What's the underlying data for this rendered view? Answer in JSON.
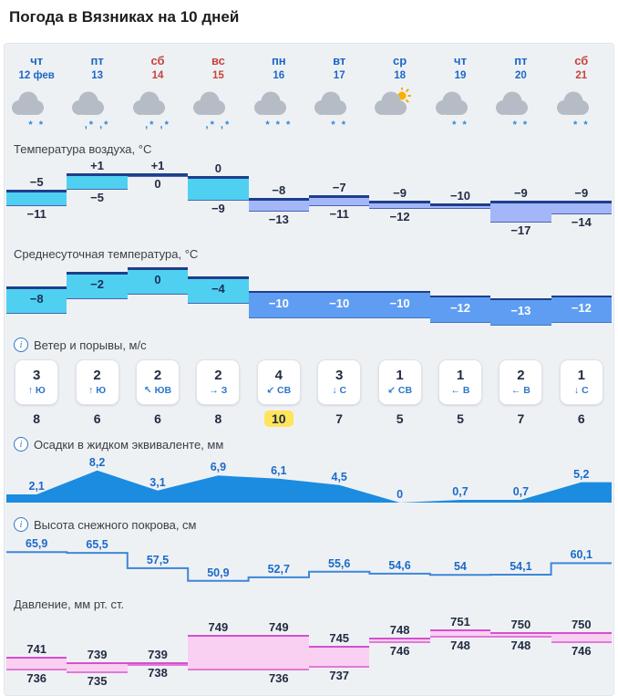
{
  "page": {
    "title": "Погода в Вязниках на 10 дней"
  },
  "sections": {
    "air_temp": "Температура воздуха, °C",
    "avg_temp": "Среднесуточная температура, °C",
    "wind": "Ветер и порывы, м/с",
    "precip": "Осадки в жидком эквиваленте, мм",
    "snow": "Высота снежного покрова, см",
    "pressure": "Давление, мм рт. ст."
  },
  "colors": {
    "warm": "#50d0f0",
    "cold_light": "#a3b6f8",
    "cold_medium": "#5e9df2",
    "edge_navy": "#1d3f8c",
    "precip": "#1b8ce0",
    "snow_line": "#3f86d6",
    "pressure_fill": "#f9d0f1",
    "pressure_edge": "#d64fd0",
    "day_blue": "#1c67c8",
    "day_red": "#c8443c",
    "gust_highlight": "#ffe45c"
  },
  "days": [
    {
      "dow": "чт",
      "date": "12 фев",
      "weekend": false,
      "icon": "cloud-snow",
      "flakes": "* *"
    },
    {
      "dow": "пт",
      "date": "13",
      "weekend": false,
      "icon": "cloud-sleet",
      "flakes": ",* ,*"
    },
    {
      "dow": "сб",
      "date": "14",
      "weekend": true,
      "icon": "cloud-sleet",
      "flakes": ",* ,*"
    },
    {
      "dow": "вс",
      "date": "15",
      "weekend": true,
      "icon": "cloud-sleet",
      "flakes": ",* ,*"
    },
    {
      "dow": "пн",
      "date": "16",
      "weekend": false,
      "icon": "cloud-snow",
      "flakes": "* * *"
    },
    {
      "dow": "вт",
      "date": "17",
      "weekend": false,
      "icon": "cloud-snow",
      "flakes": "* *"
    },
    {
      "dow": "ср",
      "date": "18",
      "weekend": false,
      "icon": "sun-cloud-snow",
      "flakes": ""
    },
    {
      "dow": "чт",
      "date": "19",
      "weekend": false,
      "icon": "cloud-snow",
      "flakes": "* *"
    },
    {
      "dow": "пт",
      "date": "20",
      "weekend": false,
      "icon": "cloud-snow",
      "flakes": "* *"
    },
    {
      "dow": "сб",
      "date": "21",
      "weekend": true,
      "icon": "cloud-snow",
      "flakes": "* *"
    }
  ],
  "chart_data": [
    {
      "id": "air_temp",
      "type": "bar",
      "title": "Температура воздуха, °C",
      "categories": [
        "чт 12",
        "пт 13",
        "сб 14",
        "вс 15",
        "пн 16",
        "вт 17",
        "ср 18",
        "чт 19",
        "пт 20",
        "сб 21"
      ],
      "series": [
        {
          "name": "max",
          "values": [
            -5,
            1,
            1,
            0,
            -8,
            -7,
            -9,
            -10,
            -9,
            -9
          ]
        },
        {
          "name": "min",
          "values": [
            -11,
            -5,
            0,
            -9,
            -13,
            -11,
            -12,
            -12,
            -17,
            -14
          ]
        }
      ],
      "labels_max": [
        "−5",
        "+1",
        "+1",
        "0",
        "−8",
        "−7",
        "−9",
        "−10",
        "−9",
        "−9"
      ],
      "labels_min": [
        "−11",
        "−5",
        "0",
        "−9",
        "−13",
        "−11",
        "−12",
        "",
        "−17",
        "−14"
      ],
      "warm_cols": 4,
      "ylim": [
        -17,
        1
      ]
    },
    {
      "id": "avg_temp",
      "type": "bar",
      "title": "Среднесуточная температура, °C",
      "values": [
        -8,
        -2,
        0,
        -4,
        -10,
        -10,
        -10,
        -12,
        -13,
        -12
      ],
      "labels": [
        "−8",
        "−2",
        "0",
        "−4",
        "−10",
        "−10",
        "−10",
        "−12",
        "−13",
        "−12"
      ],
      "warm_cols": 4,
      "ylim": [
        -13,
        0
      ]
    },
    {
      "id": "wind",
      "type": "table",
      "title": "Ветер и порывы, м/с",
      "speed": [
        3,
        2,
        2,
        2,
        4,
        3,
        1,
        1,
        2,
        1
      ],
      "direction": [
        "Ю",
        "Ю",
        "ЮВ",
        "З",
        "СВ",
        "С",
        "СВ",
        "В",
        "В",
        "С"
      ],
      "arrows": [
        "↑",
        "↑",
        "↖",
        "→",
        "↙",
        "↓",
        "↙",
        "←",
        "←",
        "↓"
      ],
      "gusts": [
        8,
        6,
        6,
        8,
        10,
        7,
        5,
        5,
        7,
        6
      ],
      "highlight_gust_col": 4
    },
    {
      "id": "precip",
      "type": "area",
      "title": "Осадки в жидком эквиваленте, мм",
      "values": [
        2.1,
        8.2,
        3.1,
        6.9,
        6.1,
        4.5,
        0,
        0.7,
        0.7,
        5.2
      ],
      "labels": [
        "2,1",
        "8,2",
        "3,1",
        "6,9",
        "6,1",
        "4,5",
        "0",
        "0,7",
        "0,7",
        "5,2"
      ],
      "ylim": [
        0,
        9
      ]
    },
    {
      "id": "snow",
      "type": "line",
      "title": "Высота снежного покрова, см",
      "values": [
        65.9,
        65.5,
        57.5,
        50.9,
        52.7,
        55.6,
        54.6,
        54,
        54.1,
        60.1
      ],
      "labels": [
        "65,9",
        "65,5",
        "57,5",
        "50,9",
        "52,7",
        "55,6",
        "54,6",
        "54",
        "54,1",
        "60,1"
      ],
      "ylim": [
        50,
        66
      ]
    },
    {
      "id": "pressure",
      "type": "bar",
      "title": "Давление, мм рт. ст.",
      "series": [
        {
          "name": "max",
          "values": [
            741,
            739,
            739,
            749,
            749,
            745,
            748,
            751,
            750,
            750
          ]
        },
        {
          "name": "min",
          "values": [
            736,
            735,
            738,
            736,
            736,
            737,
            746,
            748,
            748,
            746
          ]
        }
      ],
      "labels_max": [
        "741",
        "739",
        "739",
        "749",
        "749",
        "745",
        "748",
        "751",
        "750",
        "750"
      ],
      "labels_min": [
        "736",
        "735",
        "738",
        "",
        "736",
        "737",
        "746",
        "748",
        "748",
        "746"
      ],
      "ylim": [
        735,
        751
      ]
    }
  ]
}
